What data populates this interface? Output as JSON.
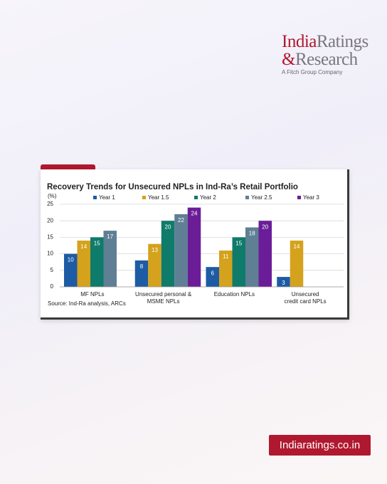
{
  "logo": {
    "india": "India",
    "ratings": "Ratings",
    "amp": "&",
    "research": "Research",
    "tagline": "A Fitch Group Company"
  },
  "website": "Indiaratings.co.in",
  "chart_data": {
    "type": "bar",
    "title": "Recovery Trends for Unsecured NPLs in Ind-Ra’s Retail Portfolio",
    "y_unit": "(%)",
    "source": "Source: Ind-Ra analysis, ARCs",
    "categories": [
      "MF NPLs",
      "Unsecured personal &\nMSME NPLs",
      "Education NPLs",
      "Unsecured\ncredit card NPLs"
    ],
    "series": [
      {
        "name": "Year 1",
        "color": "#1d5ba4",
        "values": [
          10,
          8,
          6,
          3
        ]
      },
      {
        "name": "Year 1.5",
        "color": "#d4a21c",
        "values": [
          14,
          13,
          11,
          14
        ]
      },
      {
        "name": "Year 2",
        "color": "#0f7b6a",
        "values": [
          15,
          20,
          15,
          null
        ]
      },
      {
        "name": "Year 2.5",
        "color": "#5f7f94",
        "values": [
          17,
          22,
          18,
          null
        ]
      },
      {
        "name": "Year 3",
        "color": "#6b1d98",
        "values": [
          null,
          24,
          20,
          null
        ]
      }
    ],
    "ylim": [
      0,
      25
    ],
    "yticks": [
      0,
      5,
      10,
      15,
      20,
      25
    ],
    "grid": true
  }
}
